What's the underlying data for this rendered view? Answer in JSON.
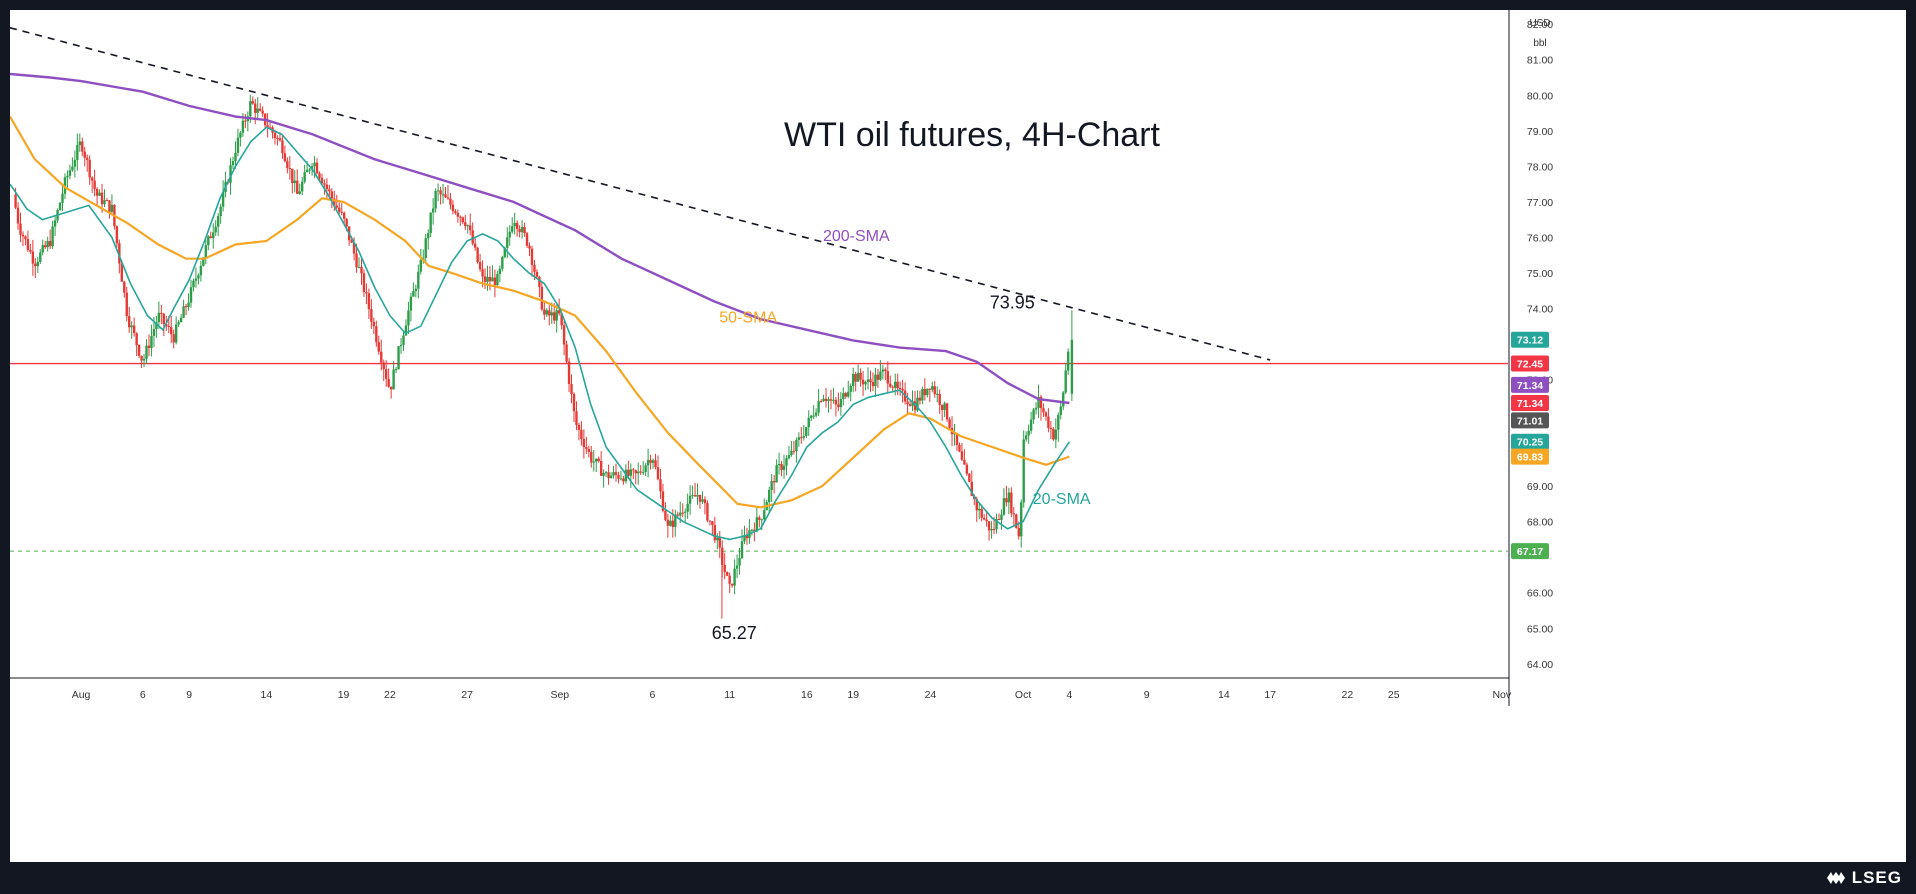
{
  "chart_data": {
    "type": "candlestick",
    "title": "WTI oil futures, 4H-Chart",
    "currency": "USD",
    "unit": "bbl",
    "ylim": [
      63.6,
      82.4
    ],
    "y_ticks": [
      "82.00",
      "81.00",
      "80.00",
      "79.00",
      "78.00",
      "77.00",
      "76.00",
      "75.00",
      "74.00",
      "72.00",
      "69.00",
      "68.00",
      "66.00",
      "65.00",
      "64.00"
    ],
    "x_ticks": [
      {
        "label": "Aug",
        "t": 8
      },
      {
        "label": "6",
        "t": 12
      },
      {
        "label": "9",
        "t": 15
      },
      {
        "label": "14",
        "t": 20
      },
      {
        "label": "19",
        "t": 25
      },
      {
        "label": "22",
        "t": 28
      },
      {
        "label": "27",
        "t": 33
      },
      {
        "label": "Sep",
        "t": 39
      },
      {
        "label": "6",
        "t": 45
      },
      {
        "label": "11",
        "t": 50
      },
      {
        "label": "16",
        "t": 55
      },
      {
        "label": "19",
        "t": 58
      },
      {
        "label": "24",
        "t": 63
      },
      {
        "label": "Oct",
        "t": 69
      },
      {
        "label": "4",
        "t": 72
      },
      {
        "label": "9",
        "t": 77
      },
      {
        "label": "14",
        "t": 82
      },
      {
        "label": "17",
        "t": 85
      },
      {
        "label": "22",
        "t": 90
      },
      {
        "label": "25",
        "t": 93
      },
      {
        "label": "Nov",
        "t": 100
      }
    ],
    "x_range": [
      3.4,
      100.4
    ],
    "price_path": [
      [
        3.6,
        77.2
      ],
      [
        4,
        76.3
      ],
      [
        5,
        75.3
      ],
      [
        6,
        75.9
      ],
      [
        7,
        77.6
      ],
      [
        8,
        78.7
      ],
      [
        9,
        77.2
      ],
      [
        10,
        76.8
      ],
      [
        11,
        73.8
      ],
      [
        12,
        72.5
      ],
      [
        13,
        73.8
      ],
      [
        14,
        73.2
      ],
      [
        15,
        74.3
      ],
      [
        16,
        75.6
      ],
      [
        17,
        76.8
      ],
      [
        18,
        78.5
      ],
      [
        19,
        79.8
      ],
      [
        20,
        79.2
      ],
      [
        21,
        78.6
      ],
      [
        22,
        77.2
      ],
      [
        23,
        78.2
      ],
      [
        24,
        77.3
      ],
      [
        25,
        76.5
      ],
      [
        26,
        75.1
      ],
      [
        27,
        73.4
      ],
      [
        28,
        71.7
      ],
      [
        29,
        73.6
      ],
      [
        30,
        75.2
      ],
      [
        31,
        77.3
      ],
      [
        32,
        76.9
      ],
      [
        33,
        76.4
      ],
      [
        34,
        74.8
      ],
      [
        35,
        74.8
      ],
      [
        36,
        76.6
      ],
      [
        37,
        75.8
      ],
      [
        38,
        73.8
      ],
      [
        39,
        73.8
      ],
      [
        40,
        70.8
      ],
      [
        41,
        69.8
      ],
      [
        42,
        69.3
      ],
      [
        43,
        69.3
      ],
      [
        44,
        69.3
      ],
      [
        45,
        69.9
      ],
      [
        46,
        67.8
      ],
      [
        47,
        68.4
      ],
      [
        48,
        68.8
      ],
      [
        49,
        67.7
      ],
      [
        50,
        66.1
      ],
      [
        51,
        67.6
      ],
      [
        52,
        68.1
      ],
      [
        53,
        69.4
      ],
      [
        54,
        69.9
      ],
      [
        55,
        70.7
      ],
      [
        56,
        71.6
      ],
      [
        57,
        71.2
      ],
      [
        58,
        72.1
      ],
      [
        59,
        71.9
      ],
      [
        60,
        72.2
      ],
      [
        61,
        71.6
      ],
      [
        62,
        71.3
      ],
      [
        63,
        71.9
      ],
      [
        64,
        71.1
      ],
      [
        65,
        69.7
      ],
      [
        66,
        68.4
      ],
      [
        67,
        67.7
      ],
      [
        68,
        68.8
      ],
      [
        68.8,
        67.5
      ],
      [
        69,
        70.3
      ],
      [
        70,
        71.4
      ],
      [
        71,
        70.4
      ],
      [
        71.5,
        71.3
      ],
      [
        72,
        73.12
      ]
    ],
    "series": [
      {
        "name": "200-SMA",
        "color": "#8e4fc0",
        "points": [
          [
            3.4,
            80.6
          ],
          [
            6,
            80.5
          ],
          [
            8,
            80.4
          ],
          [
            12,
            80.1
          ],
          [
            15,
            79.7
          ],
          [
            18,
            79.4
          ],
          [
            20,
            79.3
          ],
          [
            23,
            78.9
          ],
          [
            27,
            78.2
          ],
          [
            30,
            77.8
          ],
          [
            33,
            77.4
          ],
          [
            36,
            77.0
          ],
          [
            38,
            76.6
          ],
          [
            40,
            76.2
          ],
          [
            43,
            75.4
          ],
          [
            46,
            74.8
          ],
          [
            49,
            74.2
          ],
          [
            52,
            73.7
          ],
          [
            55,
            73.4
          ],
          [
            58,
            73.1
          ],
          [
            61,
            72.9
          ],
          [
            64,
            72.8
          ],
          [
            66,
            72.5
          ],
          [
            68,
            71.9
          ],
          [
            70,
            71.45
          ],
          [
            72,
            71.34
          ]
        ]
      },
      {
        "name": "50-SMA",
        "color": "#f6a623",
        "points": [
          [
            3.4,
            79.4
          ],
          [
            5,
            78.2
          ],
          [
            7,
            77.4
          ],
          [
            9,
            76.9
          ],
          [
            11,
            76.4
          ],
          [
            13,
            75.8
          ],
          [
            14.8,
            75.4
          ],
          [
            16,
            75.4
          ],
          [
            18,
            75.8
          ],
          [
            20,
            75.9
          ],
          [
            22,
            76.5
          ],
          [
            23.6,
            77.1
          ],
          [
            25,
            77.0
          ],
          [
            27,
            76.5
          ],
          [
            29,
            75.9
          ],
          [
            30.5,
            75.2
          ],
          [
            32,
            75.0
          ],
          [
            34,
            74.7
          ],
          [
            36,
            74.5
          ],
          [
            38,
            74.2
          ],
          [
            40,
            73.8
          ],
          [
            42,
            72.8
          ],
          [
            44,
            71.6
          ],
          [
            46,
            70.5
          ],
          [
            48,
            69.6
          ],
          [
            49.6,
            68.9
          ],
          [
            50.5,
            68.5
          ],
          [
            52,
            68.4
          ],
          [
            54,
            68.6
          ],
          [
            56,
            69.0
          ],
          [
            58,
            69.8
          ],
          [
            60,
            70.6
          ],
          [
            61.6,
            71.05
          ],
          [
            63,
            70.9
          ],
          [
            65,
            70.4
          ],
          [
            67,
            70.1
          ],
          [
            69,
            69.8
          ],
          [
            70.5,
            69.6
          ],
          [
            72,
            69.83
          ]
        ]
      },
      {
        "name": "20-SMA",
        "color": "#26a69a",
        "points": [
          [
            3.4,
            77.5
          ],
          [
            4.5,
            76.8
          ],
          [
            5.5,
            76.5
          ],
          [
            7,
            76.7
          ],
          [
            8.5,
            76.9
          ],
          [
            10,
            76.0
          ],
          [
            11.2,
            74.7
          ],
          [
            12.3,
            73.8
          ],
          [
            13.3,
            73.4
          ],
          [
            14,
            74.0
          ],
          [
            15,
            74.8
          ],
          [
            16,
            75.9
          ],
          [
            17,
            77.1
          ],
          [
            18,
            78.0
          ],
          [
            19,
            78.7
          ],
          [
            20,
            79.1
          ],
          [
            21,
            78.9
          ],
          [
            22,
            78.4
          ],
          [
            23,
            77.9
          ],
          [
            24,
            77.2
          ],
          [
            25,
            76.4
          ],
          [
            26,
            75.6
          ],
          [
            27,
            74.6
          ],
          [
            28,
            73.8
          ],
          [
            29,
            73.3
          ],
          [
            30,
            73.5
          ],
          [
            31,
            74.4
          ],
          [
            32,
            75.3
          ],
          [
            33,
            75.9
          ],
          [
            34,
            76.1
          ],
          [
            35,
            75.9
          ],
          [
            36,
            75.4
          ],
          [
            37,
            75.0
          ],
          [
            38,
            74.7
          ],
          [
            39,
            74.0
          ],
          [
            40,
            72.9
          ],
          [
            41,
            71.3
          ],
          [
            42,
            70.1
          ],
          [
            43,
            69.5
          ],
          [
            44,
            68.9
          ],
          [
            45,
            68.6
          ],
          [
            46,
            68.3
          ],
          [
            47,
            68.0
          ],
          [
            48,
            67.8
          ],
          [
            49,
            67.6
          ],
          [
            50,
            67.5
          ],
          [
            51,
            67.6
          ],
          [
            52,
            67.8
          ],
          [
            53,
            68.6
          ],
          [
            54,
            69.3
          ],
          [
            55,
            70.1
          ],
          [
            56,
            70.5
          ],
          [
            57,
            70.8
          ],
          [
            58,
            71.3
          ],
          [
            59,
            71.5
          ],
          [
            60,
            71.6
          ],
          [
            61,
            71.7
          ],
          [
            62,
            71.3
          ],
          [
            63,
            70.8
          ],
          [
            64,
            70.1
          ],
          [
            65,
            69.3
          ],
          [
            66,
            68.6
          ],
          [
            67,
            68.1
          ],
          [
            68,
            67.8
          ],
          [
            69,
            68.0
          ],
          [
            70,
            68.9
          ],
          [
            71,
            69.6
          ],
          [
            72,
            70.25
          ]
        ]
      }
    ],
    "resistance_line": {
      "value": 72.45,
      "color": "#f23645"
    },
    "support_line": {
      "value": 67.17,
      "color": "#4caf50"
    },
    "trendline": {
      "from": [
        3.4,
        81.9
      ],
      "to": [
        85,
        72.55
      ]
    },
    "annotations": [
      {
        "text": "200-SMA",
        "t": 58.2,
        "v": 75.9,
        "color": "#8e4fc0"
      },
      {
        "text": "50-SMA",
        "t": 51.2,
        "v": 73.6,
        "color": "#f6a623"
      },
      {
        "text": "20-SMA",
        "t": 71.5,
        "v": 68.5,
        "color": "#26a69a"
      },
      {
        "text": "73.95",
        "t": 68.3,
        "v": 74.0,
        "color": "#131722"
      },
      {
        "text": "65.27",
        "t": 50.3,
        "v": 64.7,
        "color": "#131722"
      }
    ],
    "price_labels": [
      {
        "text": "73.12",
        "v": 73.12,
        "color": "#26a69a"
      },
      {
        "text": "72.45",
        "v": 72.45,
        "color": "#f23645"
      },
      {
        "text": "71.34",
        "v": 71.85,
        "color": "#8e4fc0"
      },
      {
        "text": "71.34",
        "v": 71.34,
        "color": "#f23645"
      },
      {
        "text": "71.01",
        "v": 70.85,
        "color": "#555555"
      },
      {
        "text": "70.25",
        "v": 70.25,
        "color": "#26a69a"
      },
      {
        "text": "69.83",
        "v": 69.83,
        "color": "#f6a623"
      },
      {
        "text": "67.17",
        "v": 67.17,
        "color": "#4caf50"
      }
    ]
  },
  "branding": {
    "logo_text": "LSEG"
  }
}
